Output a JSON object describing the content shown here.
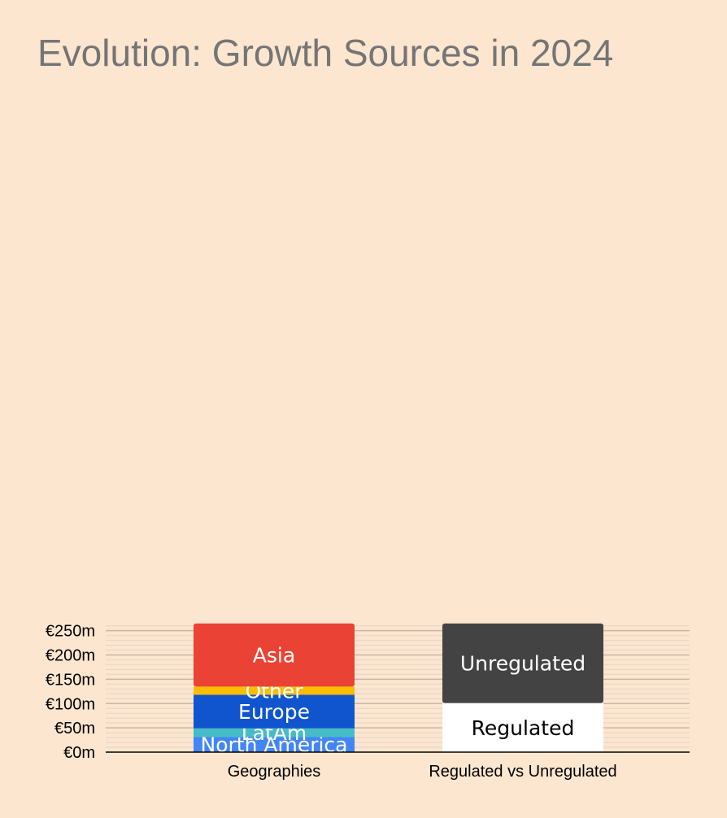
{
  "chart_data": {
    "type": "bar",
    "stacked": true,
    "title": "Evolution: Growth Sources in 2024",
    "xlabel": "",
    "ylabel": "",
    "ylim": [
      0,
      265
    ],
    "y_ticks": [
      0,
      50,
      100,
      150,
      200,
      250
    ],
    "y_tick_labels": [
      "€0m",
      "€50m",
      "€100m",
      "€150m",
      "€200m",
      "€250m"
    ],
    "grid": true,
    "legend": "none (segment labels inside bars)",
    "categories": [
      "Geographies",
      "Regulated vs Unregulated"
    ],
    "bars": [
      {
        "category": "Geographies",
        "segments": [
          {
            "name": "North America",
            "value": 31,
            "color": "#4385f5"
          },
          {
            "name": "LatAm",
            "value": 18,
            "color": "#46bdc6"
          },
          {
            "name": "Europe",
            "value": 69,
            "color": "#1055ce"
          },
          {
            "name": "Other",
            "value": 17,
            "color": "#fbbc04"
          },
          {
            "name": "Asia",
            "value": 130,
            "color": "#ea4335"
          }
        ]
      },
      {
        "category": "Regulated vs Unregulated",
        "segments": [
          {
            "name": "Regulated",
            "value": 101,
            "color": "#ffffff"
          },
          {
            "name": "Unregulated",
            "value": 164,
            "color": "#434343"
          }
        ]
      }
    ]
  },
  "colors": {
    "background": "#fde6cf",
    "title": "#757575",
    "major_grid": "#c8b7a5",
    "minor_grid": "#ead9c8",
    "axis": "#000000"
  }
}
